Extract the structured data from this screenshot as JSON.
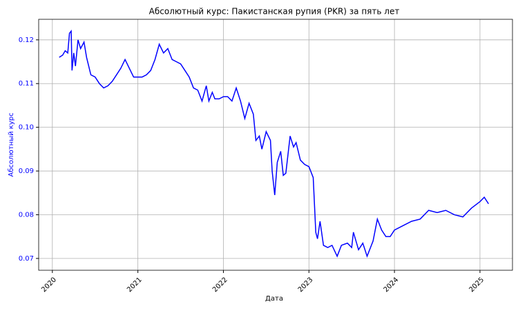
{
  "chart_data": {
    "type": "line",
    "title": "Абсолютный курс: Пакистанская рупия (PKR) за пять лет",
    "x_label": "Дата",
    "y_label": "Абсолютный курс",
    "x": [
      2020.08,
      2020.12,
      2020.15,
      2020.18,
      2020.2,
      2020.22,
      2020.23,
      2020.25,
      2020.27,
      2020.3,
      2020.33,
      2020.37,
      2020.4,
      2020.45,
      2020.5,
      2020.55,
      2020.6,
      2020.65,
      2020.7,
      2020.75,
      2020.8,
      2020.85,
      2020.9,
      2020.95,
      2021.0,
      2021.05,
      2021.1,
      2021.15,
      2021.2,
      2021.25,
      2021.3,
      2021.35,
      2021.4,
      2021.45,
      2021.5,
      2021.55,
      2021.6,
      2021.65,
      2021.7,
      2021.75,
      2021.8,
      2021.83,
      2021.87,
      2021.9,
      2021.95,
      2022.0,
      2022.05,
      2022.1,
      2022.15,
      2022.2,
      2022.25,
      2022.3,
      2022.35,
      2022.38,
      2022.42,
      2022.45,
      2022.5,
      2022.55,
      2022.57,
      2022.6,
      2022.63,
      2022.67,
      2022.7,
      2022.73,
      2022.78,
      2022.82,
      2022.85,
      2022.9,
      2022.95,
      2023.0,
      2023.05,
      2023.08,
      2023.1,
      2023.13,
      2023.17,
      2023.22,
      2023.27,
      2023.33,
      2023.38,
      2023.45,
      2023.5,
      2023.52,
      2023.58,
      2023.63,
      2023.68,
      2023.75,
      2023.8,
      2023.85,
      2023.9,
      2023.95,
      2024.0,
      2024.1,
      2024.2,
      2024.3,
      2024.4,
      2024.5,
      2024.6,
      2024.7,
      2024.8,
      2024.9,
      2025.0,
      2025.05,
      2025.1
    ],
    "series": [
      {
        "name": "PKR",
        "color": "#0000ff",
        "values": [
          0.116,
          0.1165,
          0.1175,
          0.117,
          0.1215,
          0.122,
          0.113,
          0.117,
          0.114,
          0.12,
          0.118,
          0.1195,
          0.116,
          0.112,
          0.1115,
          0.11,
          0.109,
          0.1095,
          0.1105,
          0.112,
          0.1135,
          0.1155,
          0.1135,
          0.1115,
          0.1115,
          0.1115,
          0.112,
          0.113,
          0.1155,
          0.119,
          0.117,
          0.118,
          0.1155,
          0.115,
          0.1145,
          0.113,
          0.1115,
          0.109,
          0.1085,
          0.106,
          0.1095,
          0.106,
          0.108,
          0.1065,
          0.1065,
          0.107,
          0.107,
          0.106,
          0.109,
          0.106,
          0.102,
          0.1055,
          0.103,
          0.097,
          0.098,
          0.095,
          0.099,
          0.097,
          0.09,
          0.0845,
          0.092,
          0.0945,
          0.089,
          0.0895,
          0.098,
          0.0955,
          0.0965,
          0.0925,
          0.0915,
          0.091,
          0.0885,
          0.076,
          0.0745,
          0.0785,
          0.073,
          0.0725,
          0.073,
          0.0705,
          0.073,
          0.0735,
          0.0725,
          0.076,
          0.072,
          0.0735,
          0.0705,
          0.074,
          0.079,
          0.0765,
          0.075,
          0.075,
          0.0765,
          0.0775,
          0.0785,
          0.079,
          0.081,
          0.0805,
          0.081,
          0.08,
          0.0795,
          0.0815,
          0.083,
          0.084,
          0.0825
        ]
      }
    ],
    "xlim": [
      2019.84,
      2025.38
    ],
    "xticks": [
      2020,
      2021,
      2022,
      2023,
      2024,
      2025
    ],
    "ylim": [
      0.0673,
      0.1247
    ],
    "yticks": [
      0.07,
      0.08,
      0.09,
      0.1,
      0.11,
      0.12
    ],
    "ytick_labels": [
      "0.07",
      "0.08",
      "0.09",
      "0.10",
      "0.11",
      "0.12"
    ],
    "grid": true,
    "axis_label_color": "#0000ff"
  }
}
